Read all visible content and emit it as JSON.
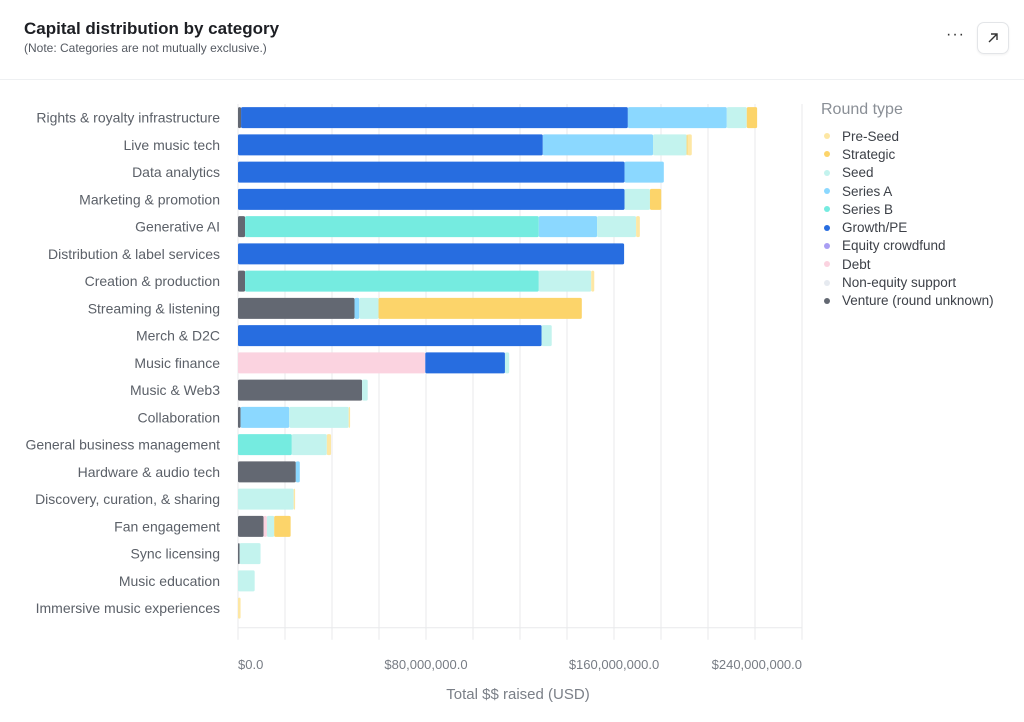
{
  "header": {
    "title": "Capital distribution by category",
    "subtitle": "(Note: Categories are not mutually exclusive.)",
    "more_label": "···",
    "expand_icon": "arrow-up-right-icon"
  },
  "chart_data": {
    "type": "bar",
    "orientation": "horizontal",
    "stacked": true,
    "title": "Capital distribution by category",
    "xlabel": "Total $$ raised (USD)",
    "ylabel": "",
    "xlim": [
      0,
      240000000
    ],
    "grid": true,
    "gridline_step": 20000000,
    "ticks": [
      0,
      80000000,
      160000000,
      240000000
    ],
    "tick_labels": [
      "$0.0",
      "$80,000,000.0",
      "$160,000,000.0",
      "$240,000,000.0"
    ],
    "legend_title": "Round type",
    "legend_position": "right",
    "categories": [
      "Rights & royalty infrastructure",
      "Live music tech",
      "Data analytics",
      "Marketing & promotion",
      "Generative AI",
      "Distribution & label services",
      "Creation & production",
      "Streaming & listening",
      "Merch & D2C",
      "Music finance",
      "Music & Web3",
      "Collaboration",
      "General business management",
      "Hardware & audio tech",
      "Discovery, curation, & sharing",
      "Fan engagement",
      "Sync licensing",
      "Music education",
      "Immersive music experiences"
    ],
    "series": [
      {
        "name": "Pre-Seed",
        "color": "#fde7a4",
        "values": [
          0,
          1800000,
          0,
          0,
          1600000,
          0,
          1300000,
          0,
          0,
          0,
          0,
          600000,
          1800000,
          0,
          600000,
          0,
          0,
          0,
          1100000
        ]
      },
      {
        "name": "Strategic",
        "color": "#fcd46a",
        "values": [
          4400000,
          400000,
          0,
          4800000,
          0,
          0,
          0,
          86500000,
          0,
          0,
          0,
          0,
          0,
          0,
          0,
          7000000,
          0,
          0,
          0
        ]
      },
      {
        "name": "Seed",
        "color": "#c3f3ee",
        "values": [
          8500000,
          14300000,
          0,
          10800000,
          16600000,
          0,
          22300000,
          8200000,
          4300000,
          1800000,
          2400000,
          25300000,
          14900000,
          0,
          23700000,
          3100000,
          8900000,
          7100000,
          0
        ]
      },
      {
        "name": "Series A",
        "color": "#8bd8ff",
        "values": [
          42100000,
          46900000,
          16700000,
          0,
          24800000,
          0,
          0,
          2000000,
          0,
          0,
          0,
          20700000,
          0,
          1700000,
          0,
          0,
          0,
          0,
          0
        ]
      },
      {
        "name": "Series B",
        "color": "#75ebe0",
        "values": [
          0,
          0,
          0,
          0,
          125000000,
          0,
          125000000,
          0,
          0,
          0,
          0,
          0,
          22900000,
          0,
          0,
          0,
          0,
          0,
          0
        ]
      },
      {
        "name": "Growth/PE",
        "color": "#276de0",
        "values": [
          164600000,
          129700000,
          164500000,
          164500000,
          0,
          164300000,
          0,
          0,
          129200000,
          33900000,
          0,
          0,
          0,
          0,
          0,
          0,
          0,
          0,
          0
        ]
      },
      {
        "name": "Equity crowdfund",
        "color": "#a99ef3",
        "values": [
          0,
          0,
          0,
          0,
          0,
          0,
          0,
          0,
          0,
          0,
          0,
          0,
          0,
          0,
          0,
          0,
          0,
          0,
          0
        ]
      },
      {
        "name": "Debt",
        "color": "#fbd3e0",
        "values": [
          0,
          0,
          0,
          0,
          0,
          0,
          0,
          0,
          0,
          79700000,
          0,
          0,
          0,
          0,
          0,
          1400000,
          0,
          0,
          0
        ]
      },
      {
        "name": "Non-equity support",
        "color": "#e6eaf0",
        "values": [
          0,
          0,
          0,
          0,
          0,
          0,
          0,
          0,
          0,
          0,
          0,
          0,
          0,
          0,
          0,
          0,
          0,
          0,
          0
        ]
      },
      {
        "name": "Venture (round unknown)",
        "color": "#636872",
        "values": [
          1300000,
          0,
          0,
          0,
          3000000,
          0,
          3000000,
          49600000,
          0,
          0,
          52800000,
          1100000,
          0,
          24600000,
          0,
          10900000,
          700000,
          0,
          0
        ]
      }
    ]
  }
}
